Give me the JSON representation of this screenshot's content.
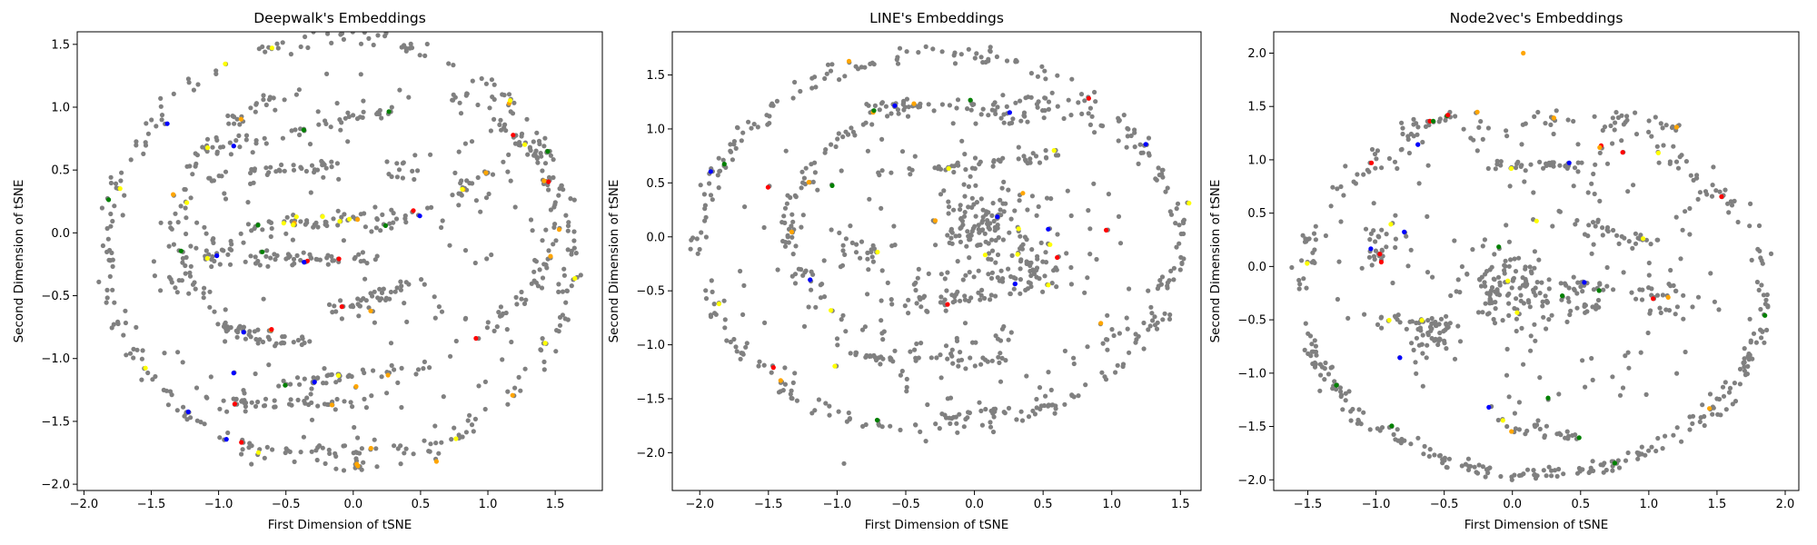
{
  "palette": {
    "base": "#808080",
    "highlights": [
      "#ff0000",
      "#0000ff",
      "#008000",
      "#ffa500",
      "#ffff00"
    ]
  },
  "chart_data": [
    {
      "type": "scatter",
      "title": "Deepwalk's Embeddings",
      "xlabel": "First Dimension of tSNE",
      "ylabel": "Second Dimension of tSNE",
      "xlim": [
        -2.05,
        1.85
      ],
      "ylim": [
        -2.05,
        1.6
      ],
      "xticks": [
        -2.0,
        -1.5,
        -1.0,
        -0.5,
        0.0,
        0.5,
        1.0,
        1.5
      ],
      "yticks": [
        -2.0,
        -1.5,
        -1.0,
        -0.5,
        0.0,
        0.5,
        1.0,
        1.5
      ],
      "xtick_labels": [
        "−2.0",
        "−1.5",
        "−1.0",
        "−0.5",
        "0.0",
        "0.5",
        "1.0",
        "1.5"
      ],
      "ytick_labels": [
        "−2.0",
        "−1.5",
        "−1.0",
        "−0.5",
        "0.0",
        "0.5",
        "1.0",
        "1.5"
      ],
      "grid": false,
      "point_color": "#808080",
      "clusters": [
        {
          "type": "arc",
          "center": [
            -0.1,
            -0.15
          ],
          "radius": [
            1.72,
            1.7
          ],
          "angle_range": [
            0,
            360
          ],
          "count": 260,
          "spread": 0.04
        },
        {
          "type": "arc",
          "center": [
            0.3,
            0.1
          ],
          "radius": [
            1.2,
            1.05
          ],
          "angle_range": [
            -60,
            70
          ],
          "count": 90,
          "spread": 0.035
        },
        {
          "type": "arc",
          "center": [
            -0.2,
            0.1
          ],
          "radius": [
            1.1,
            1.05
          ],
          "angle_range": [
            100,
            250
          ],
          "count": 70,
          "spread": 0.035
        },
        {
          "type": "line",
          "from": [
            -1.3,
            0.6
          ],
          "to": [
            0.4,
            1.0
          ],
          "count": 50,
          "spread": 0.03
        },
        {
          "type": "line",
          "from": [
            -1.1,
            0.45
          ],
          "to": [
            -0.1,
            0.55
          ],
          "count": 35,
          "spread": 0.03
        },
        {
          "type": "line",
          "from": [
            -0.9,
            0.05
          ],
          "to": [
            0.5,
            0.15
          ],
          "count": 55,
          "spread": 0.03
        },
        {
          "type": "line",
          "from": [
            -0.8,
            -0.2
          ],
          "to": [
            0.2,
            -0.2
          ],
          "count": 45,
          "spread": 0.03
        },
        {
          "type": "line",
          "from": [
            -0.1,
            -0.6
          ],
          "to": [
            0.5,
            -0.4
          ],
          "count": 40,
          "spread": 0.04
        },
        {
          "type": "line",
          "from": [
            -1.0,
            -0.75
          ],
          "to": [
            -0.3,
            -0.9
          ],
          "count": 35,
          "spread": 0.03
        },
        {
          "type": "line",
          "from": [
            -0.5,
            -1.2
          ],
          "to": [
            0.6,
            -1.05
          ],
          "count": 40,
          "spread": 0.03
        },
        {
          "type": "line",
          "from": [
            -0.9,
            -1.35
          ],
          "to": [
            0.2,
            -1.35
          ],
          "count": 40,
          "spread": 0.03
        },
        {
          "type": "line",
          "from": [
            -0.8,
            -1.75
          ],
          "to": [
            0.6,
            -1.7
          ],
          "count": 35,
          "spread": 0.03
        },
        {
          "type": "line",
          "from": [
            0.7,
            0.3
          ],
          "to": [
            1.4,
            0.7
          ],
          "count": 20,
          "spread": 0.03
        },
        {
          "type": "blob",
          "center": [
            -1.05,
            -0.15
          ],
          "size": 0.15,
          "count": 25
        },
        {
          "type": "blob",
          "center": [
            0.4,
            0.5
          ],
          "size": 0.15,
          "count": 12
        },
        {
          "type": "blob",
          "center": [
            -1.3,
            -0.4
          ],
          "size": 0.1,
          "count": 10
        }
      ],
      "noise_count": 150,
      "highlight_count": 70,
      "fixed_points": []
    },
    {
      "type": "scatter",
      "title": "LINE's Embeddings",
      "xlabel": "First Dimension of tSNE",
      "ylabel": "Second Dimension of tSNE",
      "xlim": [
        -2.2,
        1.65
      ],
      "ylim": [
        -2.35,
        1.9
      ],
      "xticks": [
        -2.0,
        -1.5,
        -1.0,
        -0.5,
        0.0,
        0.5,
        1.0,
        1.5
      ],
      "yticks": [
        -2.0,
        -1.5,
        -1.0,
        -0.5,
        0.0,
        0.5,
        1.0,
        1.5
      ],
      "xtick_labels": [
        "−2.0",
        "−1.5",
        "−1.0",
        "−0.5",
        "0.0",
        "0.5",
        "1.0",
        "1.5"
      ],
      "ytick_labels": [
        "−2.0",
        "−1.5",
        "−1.0",
        "−0.5",
        "0.0",
        "0.5",
        "1.0",
        "1.5"
      ],
      "grid": false,
      "point_color": "#808080",
      "clusters": [
        {
          "type": "arc",
          "center": [
            -0.25,
            -0.05
          ],
          "radius": [
            1.75,
            1.75
          ],
          "angle_range": [
            20,
            340
          ],
          "count": 240,
          "spread": 0.04
        },
        {
          "type": "arc",
          "center": [
            -0.2,
            0.1
          ],
          "radius": [
            1.15,
            1.1
          ],
          "angle_range": [
            60,
            300
          ],
          "count": 120,
          "spread": 0.04
        },
        {
          "type": "arc",
          "center": [
            0.3,
            0.0
          ],
          "radius": [
            1.2,
            1.2
          ],
          "angle_range": [
            -70,
            90
          ],
          "count": 80,
          "spread": 0.04
        },
        {
          "type": "line",
          "from": [
            -0.8,
            1.2
          ],
          "to": [
            0.8,
            1.3
          ],
          "count": 45,
          "spread": 0.03
        },
        {
          "type": "line",
          "from": [
            -0.7,
            0.6
          ],
          "to": [
            0.6,
            0.75
          ],
          "count": 45,
          "spread": 0.03
        },
        {
          "type": "line",
          "from": [
            -0.6,
            -0.6
          ],
          "to": [
            0.3,
            -0.55
          ],
          "count": 35,
          "spread": 0.03
        },
        {
          "type": "line",
          "from": [
            -1.0,
            -1.1
          ],
          "to": [
            0.3,
            -1.15
          ],
          "count": 45,
          "spread": 0.03
        },
        {
          "type": "line",
          "from": [
            -0.3,
            -1.7
          ],
          "to": [
            0.6,
            -1.55
          ],
          "count": 35,
          "spread": 0.03
        },
        {
          "type": "line",
          "from": [
            -0.5,
            -0.4
          ],
          "to": [
            0.6,
            -0.3
          ],
          "count": 30,
          "spread": 0.04
        },
        {
          "type": "blob",
          "center": [
            0.05,
            0.1
          ],
          "size": 0.35,
          "count": 110
        },
        {
          "type": "blob",
          "center": [
            0.4,
            -0.3
          ],
          "size": 0.25,
          "count": 45
        },
        {
          "type": "blob",
          "center": [
            -0.8,
            -0.1
          ],
          "size": 0.2,
          "count": 25
        }
      ],
      "noise_count": 120,
      "highlight_count": 40,
      "fixed_points": [
        {
          "x": -0.95,
          "y": -2.1,
          "color": "#808080"
        }
      ]
    },
    {
      "type": "scatter",
      "title": "Node2vec's Embeddings",
      "xlabel": "First Dimension of tSNE",
      "ylabel": "Second Dimension of tSNE",
      "xlim": [
        -1.75,
        2.1
      ],
      "ylim": [
        -2.1,
        2.2
      ],
      "xticks": [
        -1.5,
        -1.0,
        -0.5,
        0.0,
        0.5,
        1.0,
        1.5,
        2.0
      ],
      "yticks": [
        -2.0,
        -1.5,
        -1.0,
        -0.5,
        0.0,
        0.5,
        1.0,
        1.5,
        2.0
      ],
      "xtick_labels": [
        "−1.5",
        "−1.0",
        "−0.5",
        "0.0",
        "0.5",
        "1.0",
        "1.5",
        "2.0"
      ],
      "ytick_labels": [
        "−2.0",
        "−1.5",
        "−1.0",
        "−0.5",
        "0.0",
        "0.5",
        "1.0",
        "1.5",
        "2.0"
      ],
      "grid": false,
      "point_color": "#808080",
      "clusters": [
        {
          "type": "arc",
          "center": [
            0.15,
            -0.25
          ],
          "radius": [
            1.7,
            1.7
          ],
          "angle_range": [
            -170,
            0
          ],
          "count": 220,
          "spread": 0.04
        },
        {
          "type": "arc",
          "center": [
            0.15,
            -0.25
          ],
          "radius": [
            1.7,
            1.65
          ],
          "angle_range": [
            0,
            180
          ],
          "count": 120,
          "spread": 0.06
        },
        {
          "type": "line",
          "from": [
            -0.8,
            1.3
          ],
          "to": [
            -0.4,
            1.4
          ],
          "count": 18,
          "spread": 0.03
        },
        {
          "type": "line",
          "from": [
            0.7,
            1.4
          ],
          "to": [
            1.2,
            1.3
          ],
          "count": 18,
          "spread": 0.03
        },
        {
          "type": "line",
          "from": [
            -0.2,
            0.95
          ],
          "to": [
            0.6,
            0.95
          ],
          "count": 35,
          "spread": 0.03
        },
        {
          "type": "line",
          "from": [
            -1.0,
            -0.5
          ],
          "to": [
            -0.4,
            -0.55
          ],
          "count": 30,
          "spread": 0.03
        },
        {
          "type": "line",
          "from": [
            -0.1,
            -1.5
          ],
          "to": [
            0.5,
            -1.6
          ],
          "count": 25,
          "spread": 0.03
        },
        {
          "type": "line",
          "from": [
            0.3,
            0.5
          ],
          "to": [
            1.0,
            0.2
          ],
          "count": 30,
          "spread": 0.04
        },
        {
          "type": "blob",
          "center": [
            0.0,
            -0.2
          ],
          "size": 0.35,
          "count": 110
        },
        {
          "type": "blob",
          "center": [
            -0.6,
            -0.7
          ],
          "size": 0.2,
          "count": 35
        },
        {
          "type": "blob",
          "center": [
            0.5,
            -0.3
          ],
          "size": 0.25,
          "count": 40
        },
        {
          "type": "blob",
          "center": [
            -1.0,
            0.2
          ],
          "size": 0.2,
          "count": 25
        },
        {
          "type": "blob",
          "center": [
            1.1,
            -0.3
          ],
          "size": 0.2,
          "count": 25
        }
      ],
      "noise_count": 140,
      "highlight_count": 45,
      "fixed_points": [
        {
          "x": 0.08,
          "y": 2.0,
          "color": "#ffa500"
        }
      ]
    }
  ]
}
